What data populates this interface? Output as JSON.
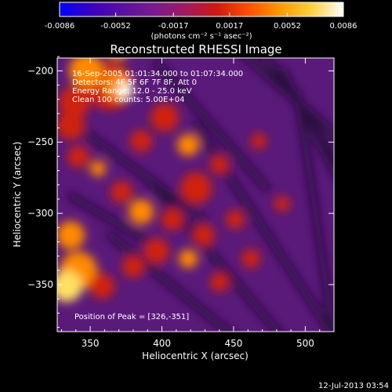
{
  "colorbar": {
    "tick_labels": [
      "-0.0086",
      "-0.0052",
      "-0.0017",
      "0.0017",
      "0.0052",
      "0.0086"
    ],
    "tick_values": [
      -0.0086,
      -0.0052,
      -0.0017,
      0.0017,
      0.0052,
      0.0086
    ],
    "range": [
      -0.0086,
      0.0086
    ],
    "unit_label": "(photons cm⁻² s⁻¹ asec⁻²)",
    "colormap": [
      "#0000ff",
      "#3a00c0",
      "#5a10a0",
      "#7a1a90",
      "#a01a60",
      "#d01a10",
      "#ff5000",
      "#ff9a00",
      "#ffd040",
      "#ffffff"
    ]
  },
  "chart_data": {
    "type": "heatmap",
    "title": "Reconstructed RHESSI Image",
    "xlabel": "Heliocentric X (arcsec)",
    "ylabel": "Heliocentric Y (arcsec)",
    "xlim": [
      327,
      520
    ],
    "ylim": [
      -383,
      -191
    ],
    "x_ticks": [
      350,
      400,
      450,
      500
    ],
    "y_ticks": [
      -200,
      -250,
      -300,
      -350
    ],
    "x_tick_labels": [
      "350",
      "400",
      "450",
      "500"
    ],
    "y_tick_labels": [
      "−200",
      "−250",
      "−300",
      "−350"
    ],
    "annotations": [
      "16-Sep-2005 01:01:34.000 to 01:07:34.000",
      "Detectors: 4F 5F 6F 7F 8F, Att 0",
      "Energy Range: 12.0 - 25.0 keV",
      "Clean 100 counts: 5.00E+04"
    ],
    "peak_label": "Position of Peak = [326,-351]",
    "peak": [
      326,
      -351
    ]
  },
  "footer": {
    "timestamp": "12-Jul-2013 03:54"
  }
}
